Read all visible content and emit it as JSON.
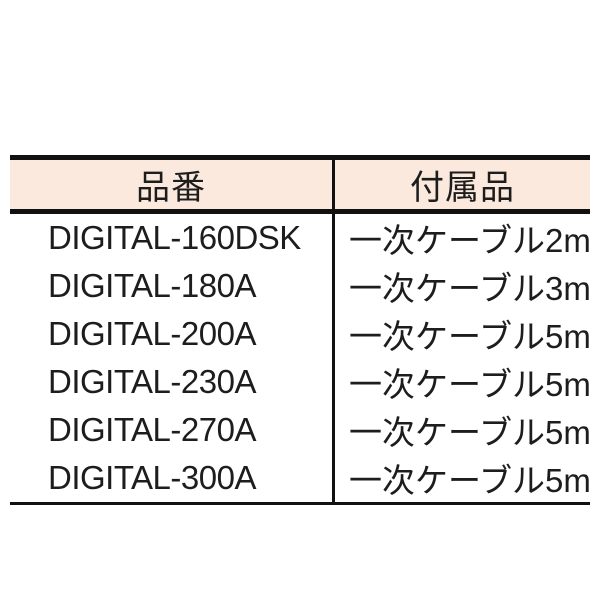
{
  "table": {
    "headers": [
      {
        "id": "part_number",
        "label": "品番"
      },
      {
        "id": "accessory",
        "label": "付属品"
      }
    ],
    "rows": [
      {
        "model": "DIGITAL-160DSK",
        "accessory": "一次ケーブル2m"
      },
      {
        "model": "DIGITAL-180A",
        "accessory": "一次ケーブル3m"
      },
      {
        "model": "DIGITAL-200A",
        "accessory": "一次ケーブル5m"
      },
      {
        "model": "DIGITAL-230A",
        "accessory": "一次ケーブル5m"
      },
      {
        "model": "DIGITAL-270A",
        "accessory": "一次ケーブル5m"
      },
      {
        "model": "DIGITAL-300A",
        "accessory": "一次ケーブル5m"
      }
    ]
  },
  "colors": {
    "header_bg": "#FAE9DC",
    "border": "#111111",
    "text": "#1D1D1D",
    "page_bg": "#FFFFFF"
  }
}
